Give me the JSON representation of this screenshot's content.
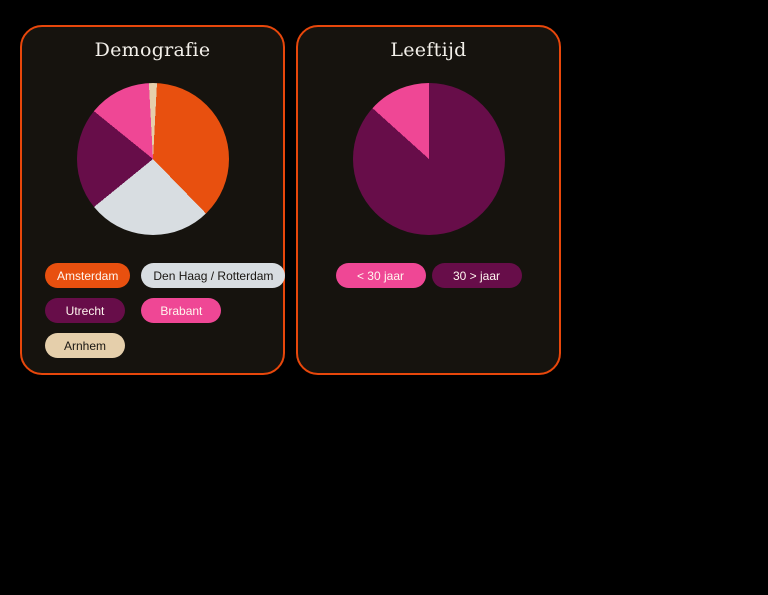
{
  "page": {
    "background": "#000000",
    "card_background": "#16130e",
    "card_border_color": "#e8470b"
  },
  "cards": [
    {
      "title": "Demografie",
      "legend": [
        {
          "label": "Amsterdam",
          "bg": "#e8500f",
          "text": "#fff6ef"
        },
        {
          "label": "Den Haag / Rotterdam",
          "bg": "#d8dde1",
          "text": "#1a1713"
        },
        {
          "label": "Utrecht",
          "bg": "#670d49",
          "text": "#fff6ef"
        },
        {
          "label": "Brabant",
          "bg": "#ef4795",
          "text": "#fff6ef"
        },
        {
          "label": "Arnhem",
          "bg": "#e5cfab",
          "text": "#1a1713"
        }
      ]
    },
    {
      "title": "Leeftijd",
      "legend": [
        {
          "label": "< 30 jaar",
          "bg": "#ef4795",
          "text": "#fff6ef"
        },
        {
          "label": "30 > jaar",
          "bg": "#670d49",
          "text": "#fff6ef"
        }
      ]
    }
  ],
  "chart_data": [
    {
      "type": "pie",
      "title": "Demografie",
      "legend_position": "bottom",
      "start_angle_deg": 3,
      "slices": [
        {
          "label": "Amsterdam",
          "value_pct": 36.9,
          "color": "#e8500f"
        },
        {
          "label": "Den Haag / Rotterdam",
          "value_pct": 26.4,
          "color": "#d8dde1"
        },
        {
          "label": "Utrecht",
          "value_pct": 21.7,
          "color": "#670d49"
        },
        {
          "label": "Brabant",
          "value_pct": 13.3,
          "color": "#ef4795"
        },
        {
          "label": "Arnhem",
          "value_pct": 1.7,
          "color": "#e5cfab"
        }
      ]
    },
    {
      "type": "pie",
      "title": "Leeftijd",
      "legend_position": "bottom",
      "start_angle_deg": -48,
      "slices": [
        {
          "label": "< 30 jaar",
          "value_pct": 13.3,
          "color": "#ef4795"
        },
        {
          "label": "30 > jaar",
          "value_pct": 86.7,
          "color": "#670d49"
        }
      ]
    }
  ]
}
